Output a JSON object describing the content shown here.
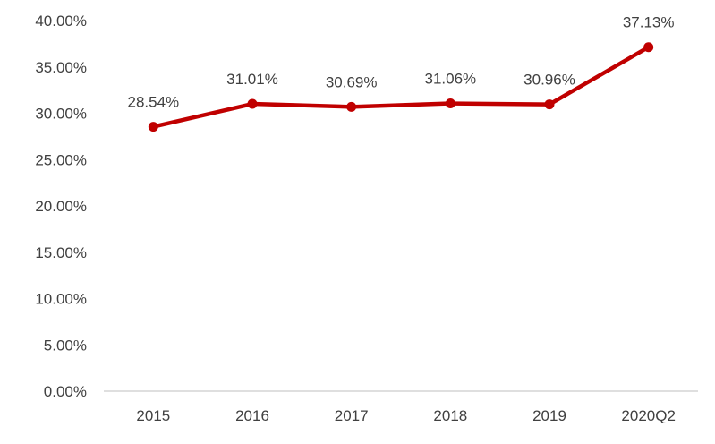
{
  "chart_data": {
    "type": "line",
    "title": "",
    "xlabel": "",
    "ylabel": "",
    "categories": [
      "2015",
      "2016",
      "2017",
      "2018",
      "2019",
      "2020Q2"
    ],
    "series": [
      {
        "values": [
          28.54,
          31.01,
          30.69,
          31.06,
          30.96,
          37.13
        ],
        "data_labels": [
          "28.54%",
          "31.01%",
          "30.69%",
          "31.06%",
          "30.96%",
          "37.13%"
        ],
        "color": "#C00000"
      }
    ],
    "ylim": [
      0,
      40
    ],
    "yticks": [
      0,
      5,
      10,
      15,
      20,
      25,
      30,
      35,
      40
    ],
    "ytick_labels": [
      "0.00%",
      "5.00%",
      "10.00%",
      "15.00%",
      "20.00%",
      "25.00%",
      "30.00%",
      "35.00%",
      "40.00%"
    ],
    "grid": false,
    "legend": "none",
    "text_color": "#404040",
    "axis_color": "#BFBFBF"
  }
}
